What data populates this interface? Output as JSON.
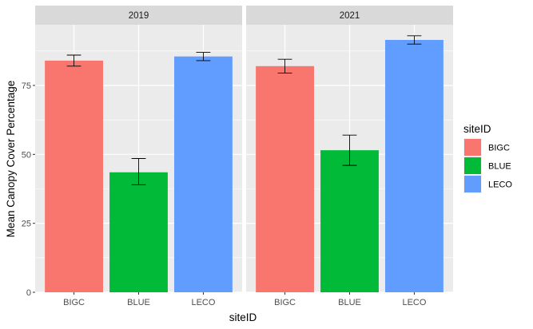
{
  "chart_data": {
    "type": "bar",
    "facets": [
      "2019",
      "2021"
    ],
    "categories": [
      "BIGC",
      "BLUE",
      "LECO"
    ],
    "series": [
      {
        "facet": "2019",
        "values": [
          84.0,
          43.5,
          85.5
        ],
        "error_low": [
          82.0,
          39.0,
          84.0
        ],
        "error_high": [
          86.0,
          48.5,
          87.0
        ]
      },
      {
        "facet": "2021",
        "values": [
          82.0,
          51.5,
          91.5
        ],
        "error_low": [
          79.5,
          46.0,
          90.0
        ],
        "error_high": [
          84.5,
          57.0,
          93.0
        ]
      }
    ],
    "colors": {
      "BIGC": "#F8766D",
      "BLUE": "#00BA38",
      "LECO": "#619CFF"
    },
    "xlabel": "siteID",
    "ylabel": "Mean Canopy Cover Percentage",
    "ylim": [
      0,
      97
    ],
    "yticks": [
      0,
      25,
      50,
      75
    ],
    "legend": {
      "title": "siteID",
      "position": "right",
      "items": [
        "BIGC",
        "BLUE",
        "LECO"
      ]
    },
    "grid": true,
    "panel_background": "#EBEBEB",
    "strip_background": "#D9D9D9"
  }
}
